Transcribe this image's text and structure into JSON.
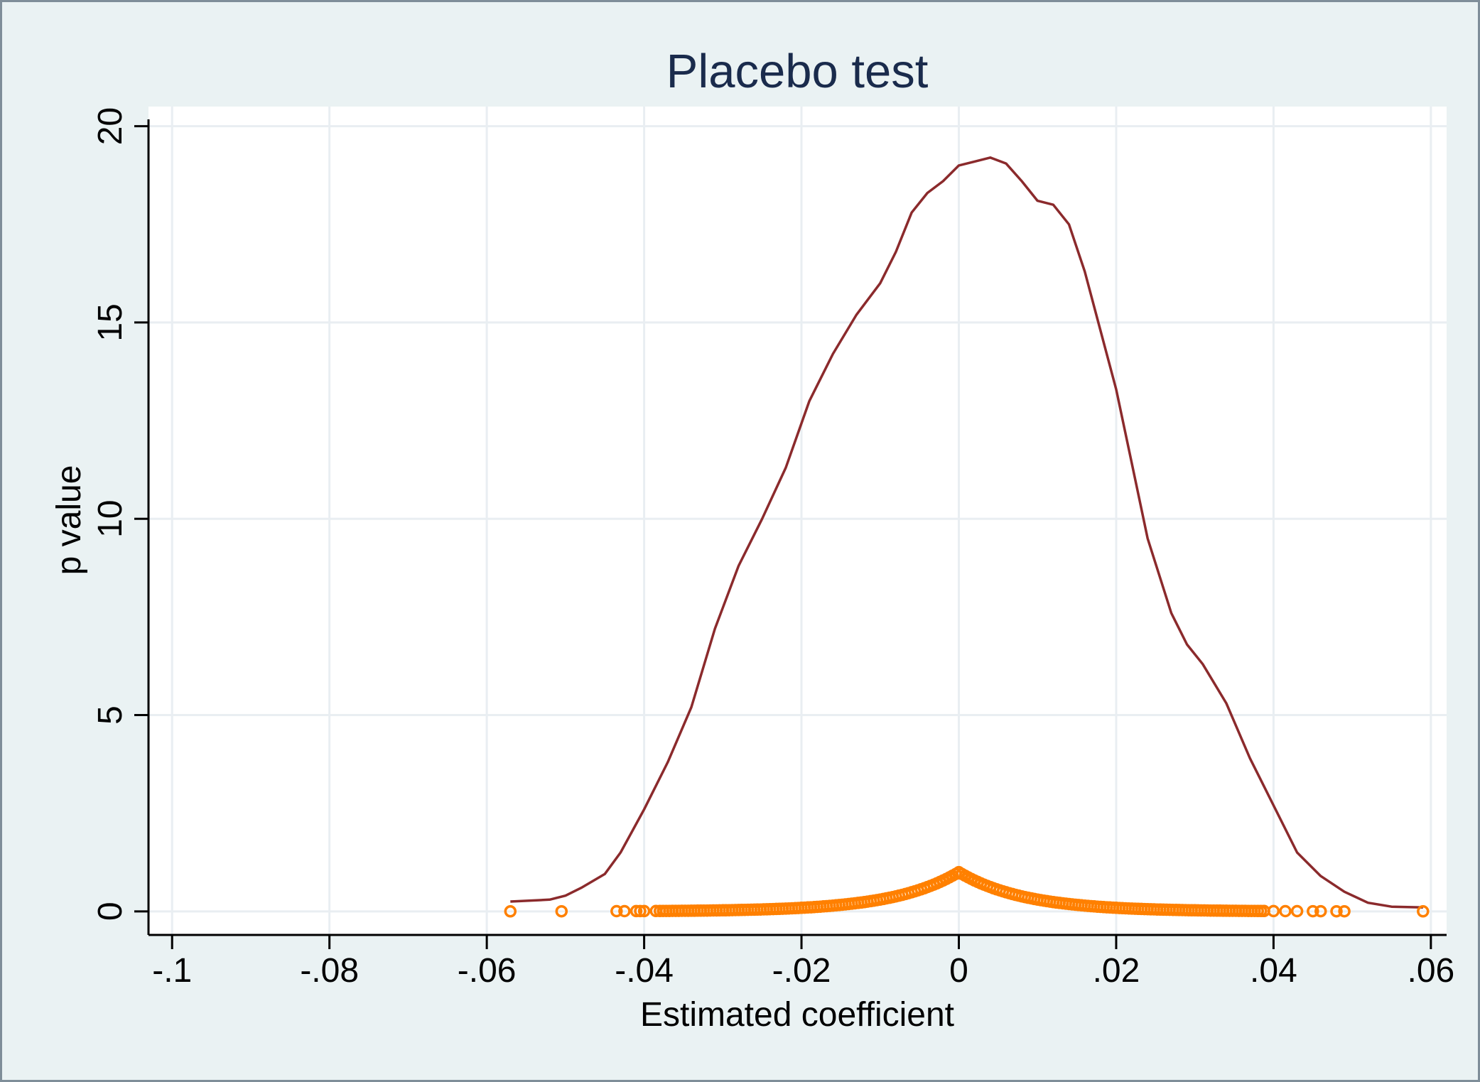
{
  "chart_data": {
    "type": "line",
    "title": "Placebo test",
    "xlabel": "Estimated coefficient",
    "ylabel": "p value",
    "xlim": [
      -0.103,
      0.062
    ],
    "ylim": [
      -0.6,
      20.5
    ],
    "grid": true,
    "legend": "none",
    "x_ticks": [
      {
        "value": -0.1,
        "label": "-.1"
      },
      {
        "value": -0.08,
        "label": "-.08"
      },
      {
        "value": -0.06,
        "label": "-.06"
      },
      {
        "value": -0.04,
        "label": "-.04"
      },
      {
        "value": -0.02,
        "label": "-.02"
      },
      {
        "value": 0,
        "label": "0"
      },
      {
        "value": 0.02,
        "label": ".02"
      },
      {
        "value": 0.04,
        "label": ".04"
      },
      {
        "value": 0.06,
        "label": ".06"
      }
    ],
    "y_ticks": [
      {
        "value": 0,
        "label": "0"
      },
      {
        "value": 5,
        "label": "5"
      },
      {
        "value": 10,
        "label": "10"
      },
      {
        "value": 15,
        "label": "15"
      },
      {
        "value": 20,
        "label": "20"
      }
    ],
    "series": [
      {
        "kind": "density-curve",
        "color": "#8b2a2c",
        "points": [
          [
            -0.057,
            0.25
          ],
          [
            -0.052,
            0.3
          ],
          [
            -0.05,
            0.4
          ],
          [
            -0.048,
            0.6
          ],
          [
            -0.045,
            0.95
          ],
          [
            -0.043,
            1.5
          ],
          [
            -0.04,
            2.6
          ],
          [
            -0.037,
            3.8
          ],
          [
            -0.034,
            5.2
          ],
          [
            -0.031,
            7.2
          ],
          [
            -0.028,
            8.8
          ],
          [
            -0.025,
            10.0
          ],
          [
            -0.022,
            11.3
          ],
          [
            -0.019,
            13.0
          ],
          [
            -0.016,
            14.2
          ],
          [
            -0.013,
            15.2
          ],
          [
            -0.01,
            16.0
          ],
          [
            -0.008,
            16.8
          ],
          [
            -0.006,
            17.8
          ],
          [
            -0.004,
            18.3
          ],
          [
            -0.002,
            18.6
          ],
          [
            0.0,
            19.0
          ],
          [
            0.002,
            19.1
          ],
          [
            0.004,
            19.2
          ],
          [
            0.006,
            19.05
          ],
          [
            0.008,
            18.6
          ],
          [
            0.01,
            18.1
          ],
          [
            0.012,
            18.0
          ],
          [
            0.014,
            17.5
          ],
          [
            0.016,
            16.3
          ],
          [
            0.018,
            14.8
          ],
          [
            0.02,
            13.3
          ],
          [
            0.022,
            11.4
          ],
          [
            0.024,
            9.5
          ],
          [
            0.027,
            7.6
          ],
          [
            0.029,
            6.8
          ],
          [
            0.031,
            6.3
          ],
          [
            0.034,
            5.3
          ],
          [
            0.037,
            3.9
          ],
          [
            0.04,
            2.7
          ],
          [
            0.043,
            1.5
          ],
          [
            0.046,
            0.9
          ],
          [
            0.049,
            0.5
          ],
          [
            0.052,
            0.22
          ],
          [
            0.055,
            0.12
          ],
          [
            0.059,
            0.1
          ]
        ]
      },
      {
        "kind": "p-value-points",
        "color": "#ff8000",
        "outliers": [
          -0.057,
          -0.0505,
          -0.0435,
          -0.0425,
          -0.041,
          -0.0405,
          -0.04,
          -0.0385,
          0.04,
          0.0415,
          0.043,
          0.045,
          0.046,
          0.048,
          0.049,
          0.059
        ],
        "dense_x_range": [
          -0.038,
          0.039
        ],
        "peak_value": 1.0,
        "decay_rate": 120
      }
    ]
  }
}
